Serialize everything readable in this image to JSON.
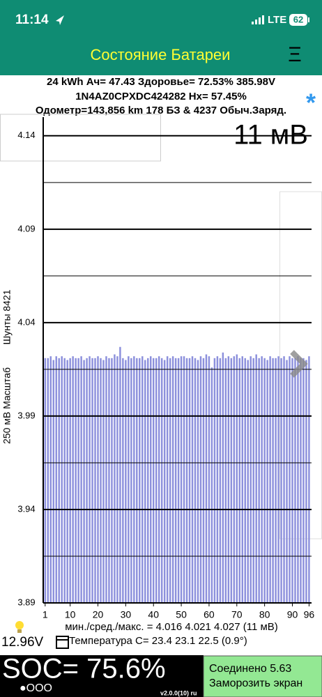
{
  "status_bar": {
    "time": "11:14",
    "network": "LTE",
    "battery": "62"
  },
  "header": {
    "title": "Состояние Батареи",
    "menu": "Ξ"
  },
  "info": {
    "line1": "24 kWh  Ач= 47.43 Здоровье= 72.53% 385.98V",
    "line2": "1N4AZ0CPXDC424282   Hx= 57.45%",
    "line3": "Одометр=143,856 km 178 БЗ & 4237 Обыч.Заряд.",
    "star": "*"
  },
  "chart_data": {
    "type": "bar",
    "annotation": "11 мВ",
    "ylabel_left": "250 мВ Масштаб",
    "ylabel_right": "Шунты 8421",
    "color": "#8c90dc",
    "x": [
      1,
      2,
      3,
      4,
      5,
      6,
      7,
      8,
      9,
      10,
      11,
      12,
      13,
      14,
      15,
      16,
      17,
      18,
      19,
      20,
      21,
      22,
      23,
      24,
      25,
      26,
      27,
      28,
      29,
      30,
      31,
      32,
      33,
      34,
      35,
      36,
      37,
      38,
      39,
      40,
      41,
      42,
      43,
      44,
      45,
      46,
      47,
      48,
      49,
      50,
      51,
      52,
      53,
      54,
      55,
      56,
      57,
      58,
      59,
      60,
      61,
      62,
      63,
      64,
      65,
      66,
      67,
      68,
      69,
      70,
      71,
      72,
      73,
      74,
      75,
      76,
      77,
      78,
      79,
      80,
      81,
      82,
      83,
      84,
      85,
      86,
      87,
      88,
      89,
      90,
      91,
      92,
      93,
      94,
      95,
      96
    ],
    "values": [
      4.021,
      4.021,
      4.022,
      4.02,
      4.022,
      4.021,
      4.022,
      4.021,
      4.02,
      4.021,
      4.022,
      4.021,
      4.021,
      4.022,
      4.02,
      4.021,
      4.022,
      4.021,
      4.021,
      4.022,
      4.021,
      4.02,
      4.022,
      4.021,
      4.021,
      4.023,
      4.022,
      4.027,
      4.021,
      4.02,
      4.022,
      4.021,
      4.022,
      4.021,
      4.021,
      4.022,
      4.02,
      4.021,
      4.022,
      4.021,
      4.021,
      4.022,
      4.021,
      4.02,
      4.022,
      4.021,
      4.022,
      4.021,
      4.021,
      4.022,
      4.022,
      4.021,
      4.021,
      4.022,
      4.021,
      4.02,
      4.022,
      4.021,
      4.023,
      4.022,
      4.016,
      4.021,
      4.022,
      4.021,
      4.024,
      4.021,
      4.022,
      4.021,
      4.022,
      4.023,
      4.021,
      4.022,
      4.021,
      4.02,
      4.022,
      4.021,
      4.023,
      4.021,
      4.022,
      4.021,
      4.02,
      4.022,
      4.021,
      4.021,
      4.022,
      4.021,
      4.022,
      4.02,
      4.022,
      4.021,
      4.021,
      4.022,
      4.021,
      4.021,
      4.02,
      4.022
    ],
    "xlim": [
      0.3,
      96.9
    ],
    "xticks": [
      1,
      10,
      20,
      30,
      40,
      50,
      60,
      70,
      80,
      90,
      96
    ],
    "ylim": [
      3.89,
      4.15
    ],
    "yticks": [
      3.89,
      3.94,
      3.99,
      4.04,
      4.09,
      4.14
    ],
    "minor_yticks": [
      3.915,
      3.965,
      4.015,
      4.065,
      4.115
    ],
    "grid": true
  },
  "footer": {
    "stats": "мин./сред./макс. = 4.016 4.021 4.027  (11 мВ)",
    "pack_voltage": "12.96V",
    "temperature": "Температура C= 23.4  23.1  22.5  (0.9°)",
    "soc": "SOC= 75.6%",
    "pages": "●OOO",
    "version": "v2.0.0(10) ru",
    "connected": "Соединено 5.63",
    "freeze": "Заморозить экран"
  }
}
